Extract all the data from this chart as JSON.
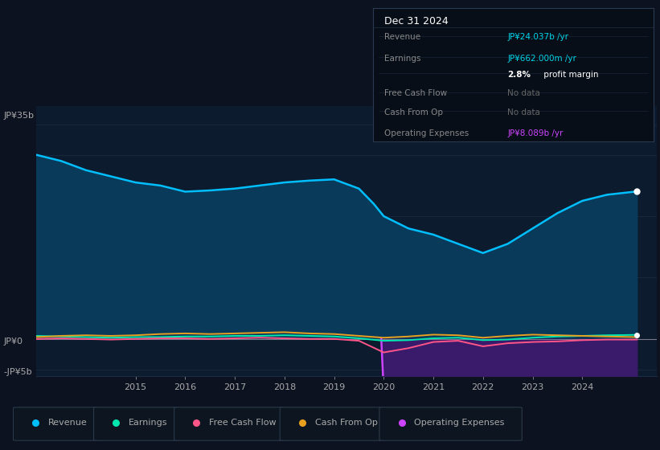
{
  "bg_color": "#0c1220",
  "plot_bg_color": "#0d1b2e",
  "plot_bg_left": "#0a1520",
  "grid_color": "#1a2d45",
  "text_color": "#aaaaaa",
  "zero_line_color": "#aaaaaa",
  "ylim": [
    -6000000000.0,
    38000000000.0
  ],
  "ylabel_35b": "JP¥35b",
  "ylabel_0": "JP¥0",
  "ylabel_neg5b": "-JP¥5b",
  "info_box": {
    "bg": "#080e18",
    "border": "#2a3a50",
    "title": "Dec 31 2024",
    "title_color": "#ffffff",
    "label_color": "#888888",
    "divider_color": "#1a2a40"
  },
  "revenue": {
    "color": "#00bfff",
    "fill_color": "#0a3a5a",
    "fill_alpha": 1.0,
    "years": [
      2013.0,
      2013.5,
      2014.0,
      2014.5,
      2015.0,
      2015.5,
      2016.0,
      2016.5,
      2017.0,
      2017.5,
      2018.0,
      2018.5,
      2019.0,
      2019.5,
      2019.8,
      2020.0,
      2020.5,
      2021.0,
      2021.5,
      2022.0,
      2022.5,
      2023.0,
      2023.5,
      2024.0,
      2024.5,
      2025.1
    ],
    "values": [
      30000000000.0,
      29000000000.0,
      27500000000.0,
      26500000000.0,
      25500000000.0,
      25000000000.0,
      24000000000.0,
      24200000000.0,
      24500000000.0,
      25000000000.0,
      25500000000.0,
      25800000000.0,
      26000000000.0,
      24500000000.0,
      22000000000.0,
      20000000000.0,
      18000000000.0,
      17000000000.0,
      15500000000.0,
      14000000000.0,
      15500000000.0,
      18000000000.0,
      20500000000.0,
      22500000000.0,
      23500000000.0,
      24037000000.0
    ]
  },
  "operating_expenses": {
    "color": "#cc44ff",
    "fill_color": "#3a1a6a",
    "fill_alpha": 1.0,
    "years": [
      2019.95,
      2020.0,
      2020.5,
      2021.0,
      2021.5,
      2022.0,
      2022.5,
      2023.0,
      2023.5,
      2024.0,
      2024.5,
      2025.1
    ],
    "values": [
      0,
      -8500000000.0,
      -7500000000.0,
      -7000000000.0,
      -7300000000.0,
      -7800000000.0,
      -7600000000.0,
      -7800000000.0,
      -8000000000.0,
      -8000000000.0,
      -8100000000.0,
      -8089000000.0
    ]
  },
  "earnings": {
    "color": "#00e8b0",
    "years": [
      2013.0,
      2013.5,
      2014.0,
      2014.5,
      2015.0,
      2015.5,
      2016.0,
      2016.5,
      2017.0,
      2017.5,
      2018.0,
      2018.5,
      2019.0,
      2019.5,
      2020.0,
      2020.5,
      2021.0,
      2021.5,
      2022.0,
      2022.5,
      2023.0,
      2023.5,
      2024.0,
      2024.5,
      2025.1
    ],
    "values": [
      500000000.0,
      400000000.0,
      300000000.0,
      200000000.0,
      300000000.0,
      300000000.0,
      400000000.0,
      400000000.0,
      500000000.0,
      500000000.0,
      600000000.0,
      500000000.0,
      400000000.0,
      100000000.0,
      -300000000.0,
      -200000000.0,
      100000000.0,
      200000000.0,
      -200000000.0,
      -100000000.0,
      200000000.0,
      400000000.0,
      500000000.0,
      600000000.0,
      662000000.0
    ]
  },
  "free_cash_flow": {
    "color": "#ff5588",
    "years": [
      2013.0,
      2013.5,
      2014.0,
      2014.5,
      2015.0,
      2015.5,
      2016.0,
      2016.5,
      2017.0,
      2017.5,
      2018.0,
      2018.5,
      2019.0,
      2019.5,
      2020.0,
      2020.5,
      2021.0,
      2021.5,
      2022.0,
      2022.5,
      2023.0,
      2023.5,
      2024.0,
      2024.5,
      2025.1
    ],
    "values": [
      0.0,
      100000000.0,
      0.0,
      -100000000.0,
      0.0,
      100000000.0,
      100000000.0,
      0.0,
      100000000.0,
      200000000.0,
      100000000.0,
      0.0,
      0.0,
      -300000000.0,
      -2200000000.0,
      -1500000000.0,
      -500000000.0,
      -300000000.0,
      -1200000000.0,
      -700000000.0,
      -500000000.0,
      -400000000.0,
      -200000000.0,
      -100000000.0,
      -100000000.0
    ]
  },
  "cash_from_op": {
    "color": "#e8a020",
    "years": [
      2013.0,
      2013.5,
      2014.0,
      2014.5,
      2015.0,
      2015.5,
      2016.0,
      2016.5,
      2017.0,
      2017.5,
      2018.0,
      2018.5,
      2019.0,
      2019.5,
      2020.0,
      2020.5,
      2021.0,
      2021.5,
      2022.0,
      2022.5,
      2023.0,
      2023.5,
      2024.0,
      2024.5,
      2025.1
    ],
    "values": [
      300000000.0,
      500000000.0,
      600000000.0,
      500000000.0,
      600000000.0,
      800000000.0,
      900000000.0,
      800000000.0,
      900000000.0,
      1000000000.0,
      1100000000.0,
      900000000.0,
      800000000.0,
      500000000.0,
      200000000.0,
      400000000.0,
      700000000.0,
      600000000.0,
      200000000.0,
      500000000.0,
      700000000.0,
      600000000.0,
      500000000.0,
      400000000.0,
      300000000.0
    ]
  },
  "legend_items": [
    {
      "label": "Revenue",
      "color": "#00bfff"
    },
    {
      "label": "Earnings",
      "color": "#00e8b0"
    },
    {
      "label": "Free Cash Flow",
      "color": "#ff5588"
    },
    {
      "label": "Cash From Op",
      "color": "#e8a020"
    },
    {
      "label": "Operating Expenses",
      "color": "#cc44ff"
    }
  ],
  "xmin": 2013.0,
  "xmax": 2025.5,
  "xtick_years": [
    2015,
    2016,
    2017,
    2018,
    2019,
    2020,
    2021,
    2022,
    2023,
    2024
  ]
}
